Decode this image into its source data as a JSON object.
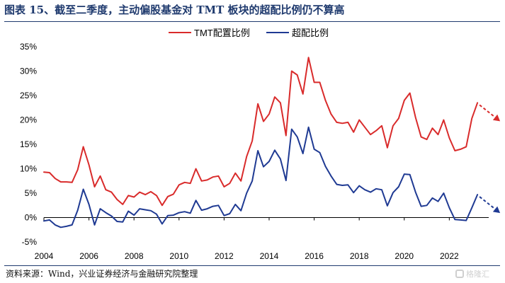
{
  "title": "图表 15、截至二季度，主动偏股基金对 TMT 板块的超配比例仍不算高",
  "source": "资料来源：Wind，兴业证券经济与金融研究院整理",
  "watermark": "格隆汇",
  "colors": {
    "series_red": "#d92b2b",
    "series_blue": "#1f3a93",
    "title": "#1f3a6e"
  },
  "chart_data": {
    "type": "line",
    "title": "",
    "xlabel": "",
    "ylabel": "",
    "xlim": [
      2004.0,
      2023.75
    ],
    "ylim": [
      -0.05,
      0.35
    ],
    "x_ticks": [
      2004,
      2006,
      2008,
      2010,
      2012,
      2014,
      2016,
      2018,
      2020,
      2022
    ],
    "y_ticks": [
      -0.05,
      0,
      0.05,
      0.1,
      0.15,
      0.2,
      0.25,
      0.3,
      0.35
    ],
    "y_tick_labels": [
      "-5%",
      "0%",
      "5%",
      "10%",
      "15%",
      "20%",
      "25%",
      "30%",
      "35%"
    ],
    "grid": false,
    "legend_position": "top-center",
    "annotations": "dashed arrows pointing down to the right after the last points of both series",
    "x": [
      2004.0,
      2004.25,
      2004.5,
      2004.75,
      2005.0,
      2005.25,
      2005.5,
      2005.75,
      2006.0,
      2006.25,
      2006.5,
      2006.75,
      2007.0,
      2007.25,
      2007.5,
      2007.75,
      2008.0,
      2008.25,
      2008.5,
      2008.75,
      2009.0,
      2009.25,
      2009.5,
      2009.75,
      2010.0,
      2010.25,
      2010.5,
      2010.75,
      2011.0,
      2011.25,
      2011.5,
      2011.75,
      2012.0,
      2012.25,
      2012.5,
      2012.75,
      2013.0,
      2013.25,
      2013.5,
      2013.75,
      2014.0,
      2014.25,
      2014.5,
      2014.75,
      2015.0,
      2015.25,
      2015.5,
      2015.75,
      2016.0,
      2016.25,
      2016.5,
      2016.75,
      2017.0,
      2017.25,
      2017.5,
      2017.75,
      2018.0,
      2018.25,
      2018.5,
      2018.75,
      2019.0,
      2019.25,
      2019.5,
      2019.75,
      2020.0,
      2020.25,
      2020.5,
      2020.75,
      2021.0,
      2021.25,
      2021.5,
      2021.75,
      2022.0,
      2022.25,
      2022.5,
      2022.75,
      2023.0,
      2023.25
    ],
    "series": [
      {
        "name": "TMT配置比例",
        "color": "#d92b2b",
        "values": [
          0.093,
          0.092,
          0.08,
          0.073,
          0.073,
          0.072,
          0.098,
          0.145,
          0.108,
          0.063,
          0.085,
          0.057,
          0.052,
          0.037,
          0.027,
          0.045,
          0.042,
          0.052,
          0.047,
          0.053,
          0.045,
          0.025,
          0.043,
          0.048,
          0.067,
          0.072,
          0.07,
          0.1,
          0.075,
          0.077,
          0.083,
          0.085,
          0.063,
          0.07,
          0.091,
          0.075,
          0.125,
          0.157,
          0.233,
          0.197,
          0.212,
          0.247,
          0.235,
          0.168,
          0.3,
          0.292,
          0.253,
          0.328,
          0.277,
          0.277,
          0.24,
          0.212,
          0.195,
          0.193,
          0.195,
          0.175,
          0.2,
          0.185,
          0.17,
          0.178,
          0.188,
          0.143,
          0.188,
          0.203,
          0.24,
          0.255,
          0.205,
          0.165,
          0.16,
          0.183,
          0.17,
          0.2,
          0.163,
          0.137,
          0.14,
          0.145,
          0.203,
          0.235
        ]
      },
      {
        "name": "超配比例",
        "color": "#1f3a93",
        "values": [
          -0.007,
          -0.005,
          -0.015,
          -0.02,
          -0.018,
          -0.015,
          0.015,
          0.058,
          0.027,
          -0.015,
          0.018,
          0.01,
          0.003,
          -0.008,
          -0.009,
          0.013,
          0.005,
          0.018,
          0.016,
          0.014,
          0.007,
          -0.013,
          0.004,
          0.005,
          0.01,
          0.012,
          0.009,
          0.035,
          0.015,
          0.018,
          0.023,
          0.025,
          0.004,
          0.008,
          0.027,
          0.014,
          0.05,
          0.075,
          0.137,
          0.104,
          0.115,
          0.138,
          0.12,
          0.076,
          0.181,
          0.165,
          0.131,
          0.185,
          0.14,
          0.133,
          0.105,
          0.085,
          0.068,
          0.066,
          0.067,
          0.051,
          0.065,
          0.057,
          0.052,
          0.059,
          0.057,
          0.024,
          0.051,
          0.063,
          0.089,
          0.088,
          0.052,
          0.023,
          0.025,
          0.04,
          0.033,
          0.05,
          0.02,
          -0.004,
          -0.005,
          -0.006,
          0.02,
          0.047
        ]
      }
    ]
  }
}
